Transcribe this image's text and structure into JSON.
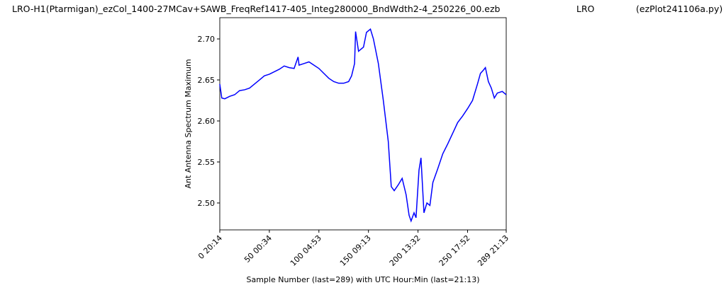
{
  "chart_data": {
    "type": "line",
    "title": "LRO-H1(Ptarmigan)_ezCol_1400-27MCav+SAWB_FreqRef1417-405_Integ280000_BndWdth2-4_250226_00.ezb",
    "subtitle": "LRO",
    "annotation": "(ezPlot241106a.py)",
    "x_label": "Sample Number (last=289) with UTC Hour:Min (last=21:13)",
    "y_label": "Ant Antenna Spectrum Maximum",
    "x": [
      0,
      2,
      5,
      10,
      15,
      20,
      25,
      30,
      35,
      40,
      45,
      50,
      55,
      60,
      65,
      70,
      75,
      79,
      80,
      85,
      90,
      95,
      100,
      105,
      110,
      115,
      120,
      125,
      130,
      133,
      136,
      137,
      140,
      145,
      148,
      152,
      155,
      160,
      165,
      170,
      173,
      176,
      180,
      184,
      188,
      191,
      193,
      196,
      198,
      201,
      203,
      206,
      209,
      212,
      215,
      220,
      225,
      230,
      235,
      240,
      245,
      250,
      255,
      260,
      263,
      266,
      268,
      271,
      274,
      277,
      280,
      285,
      289
    ],
    "series": [
      {
        "name": "Ant Antenna Spectrum Maximum",
        "color": "#0000ff",
        "values": [
          2.645,
          2.628,
          2.627,
          2.63,
          2.632,
          2.637,
          2.638,
          2.64,
          2.645,
          2.65,
          2.655,
          2.657,
          2.66,
          2.663,
          2.667,
          2.665,
          2.664,
          2.678,
          2.668,
          2.67,
          2.672,
          2.668,
          2.664,
          2.658,
          2.652,
          2.648,
          2.646,
          2.646,
          2.648,
          2.655,
          2.67,
          2.709,
          2.685,
          2.69,
          2.708,
          2.712,
          2.7,
          2.67,
          2.625,
          2.575,
          2.52,
          2.515,
          2.522,
          2.53,
          2.51,
          2.485,
          2.478,
          2.488,
          2.482,
          2.54,
          2.555,
          2.488,
          2.5,
          2.497,
          2.525,
          2.542,
          2.56,
          2.572,
          2.585,
          2.598,
          2.606,
          2.615,
          2.625,
          2.645,
          2.658,
          2.662,
          2.665,
          2.648,
          2.64,
          2.628,
          2.634,
          2.636,
          2.632
        ]
      }
    ],
    "xlim": [
      0,
      289
    ],
    "xticks": [
      {
        "value": 0,
        "label": "0  20:14"
      },
      {
        "value": 50,
        "label": "50  00:34"
      },
      {
        "value": 100,
        "label": "100  04:53"
      },
      {
        "value": 150,
        "label": "150  09:13"
      },
      {
        "value": 200,
        "label": "200  13:32"
      },
      {
        "value": 250,
        "label": "250  17:52"
      },
      {
        "value": 289,
        "label": "289  21:13"
      }
    ],
    "ylim": [
      2.4672,
      2.7259
    ],
    "yticks": [
      {
        "value": 2.5,
        "label": "2.50"
      },
      2.55,
      {
        "value": 2.6,
        "label": "2.60"
      },
      2.65,
      {
        "value": 2.7,
        "label": "2.70"
      }
    ],
    "grid": false
  }
}
